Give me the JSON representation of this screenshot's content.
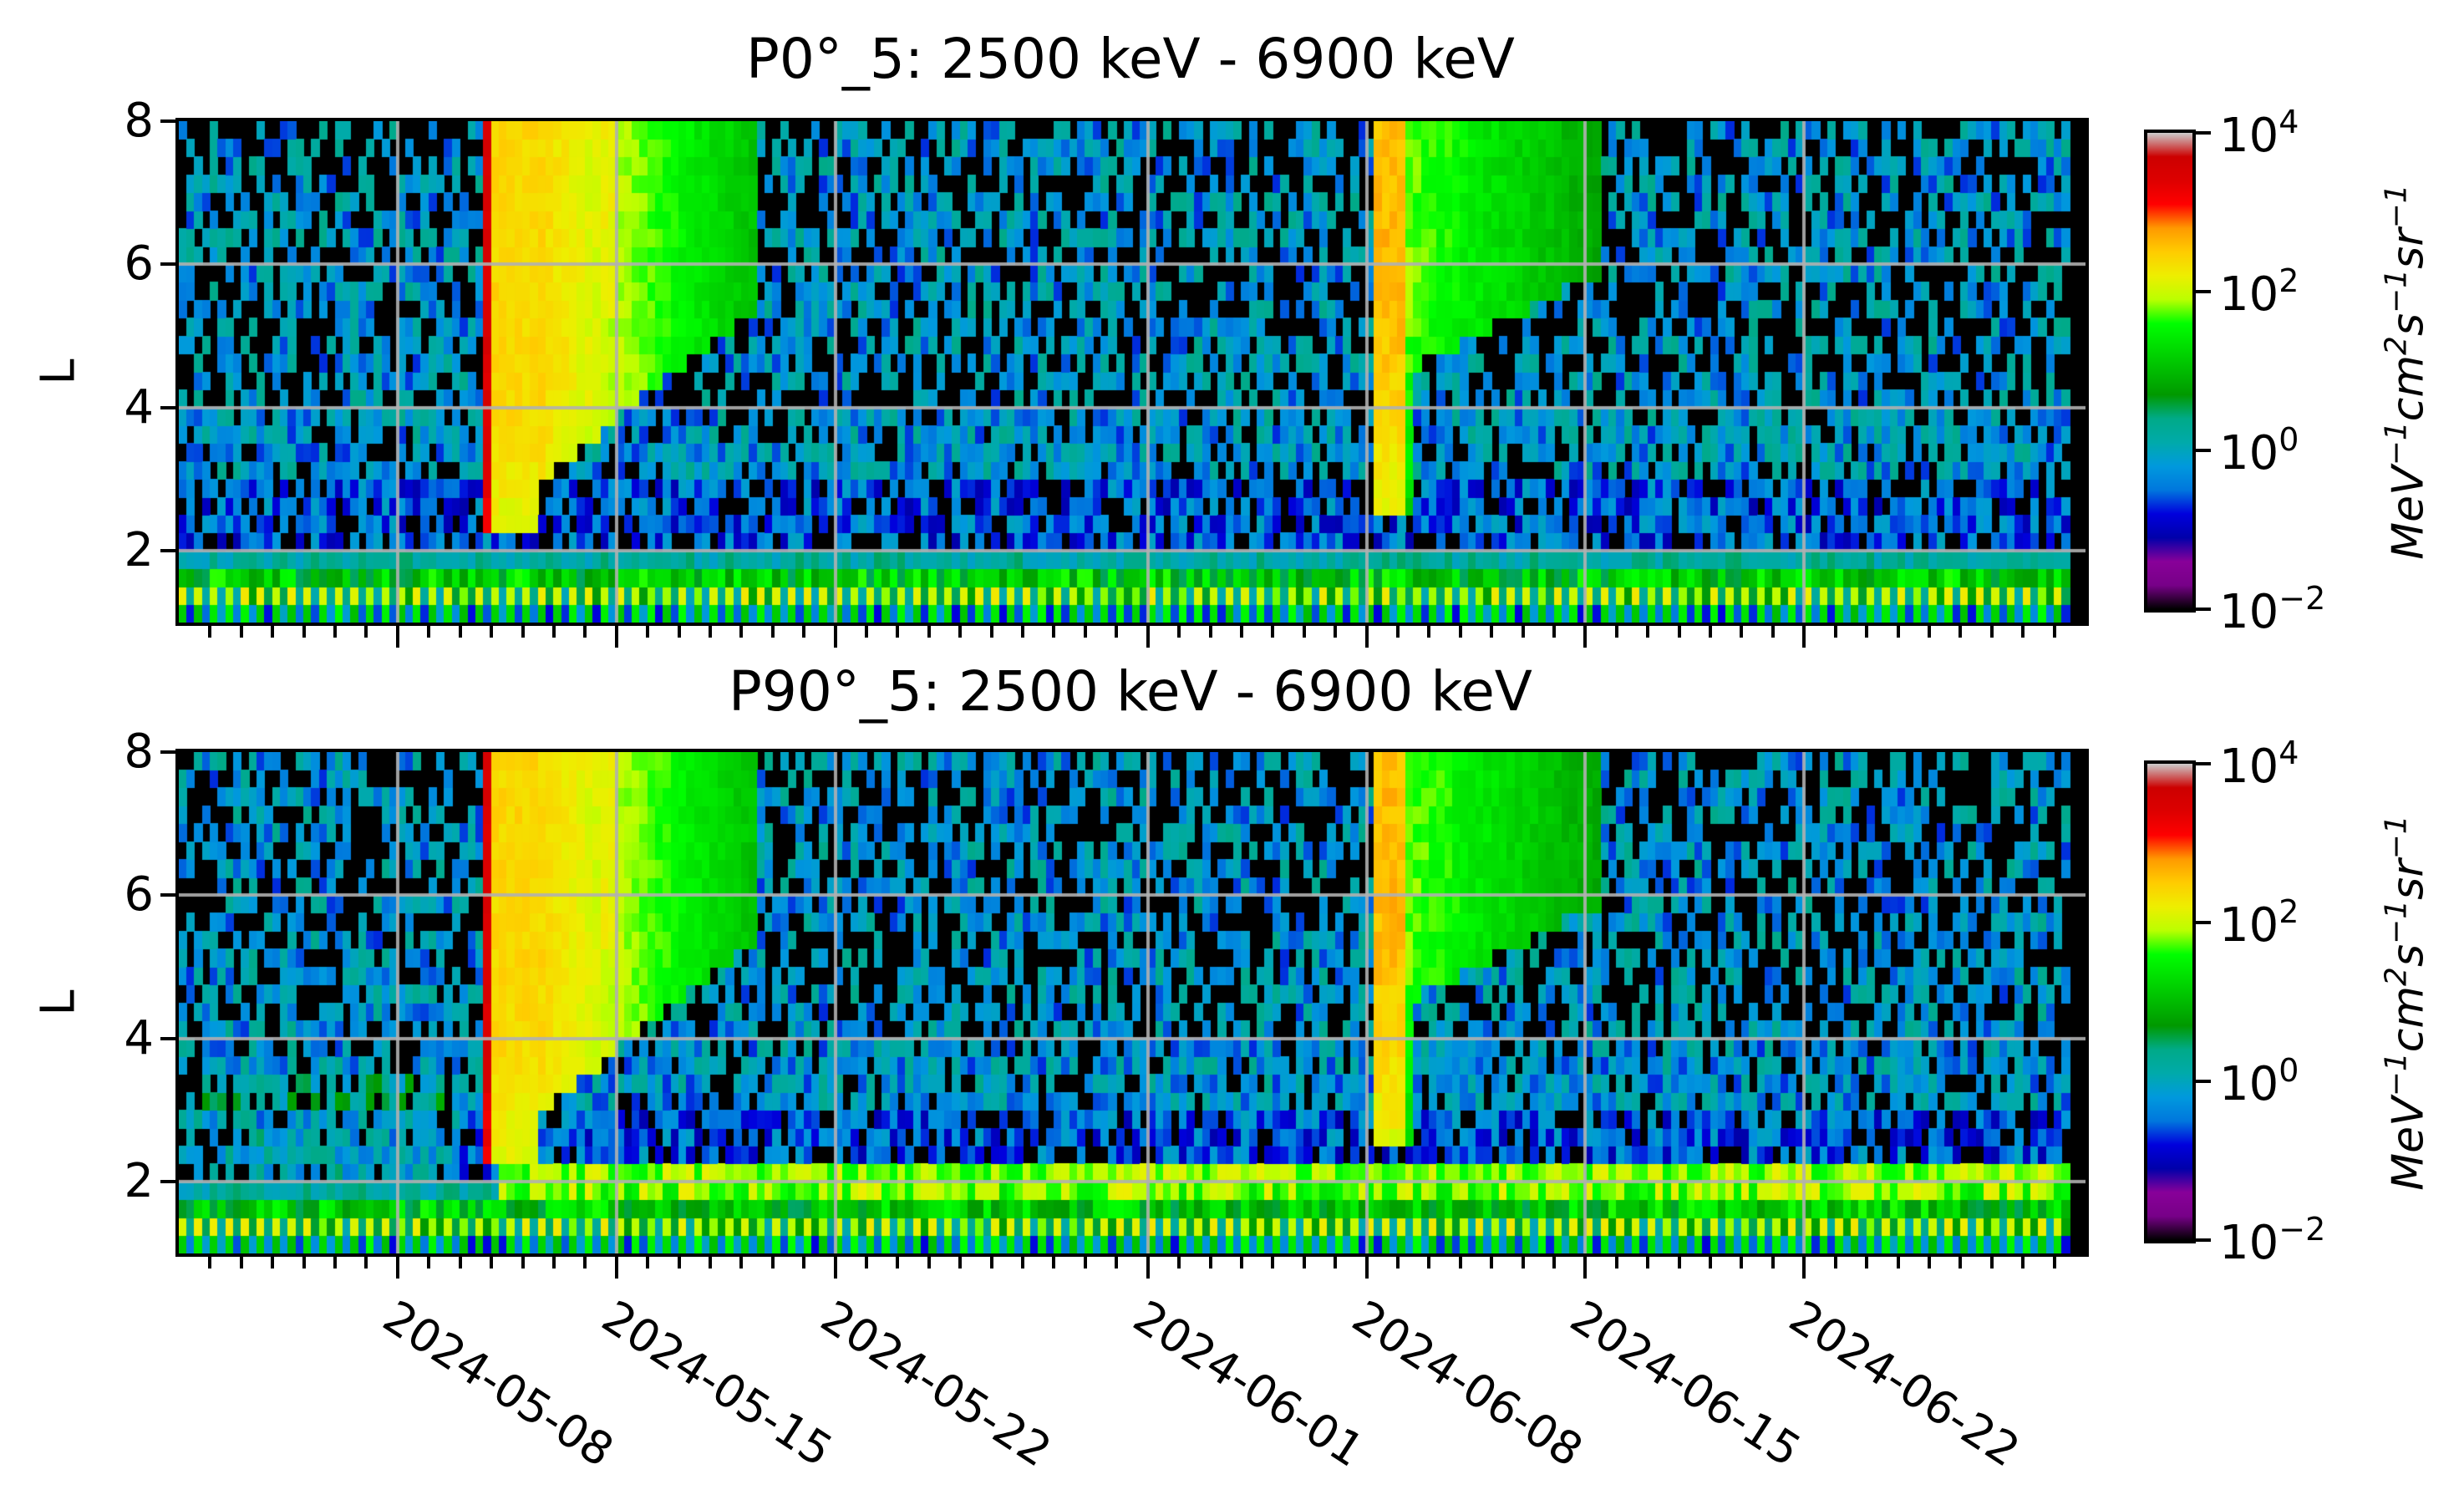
{
  "chart_data": [
    {
      "type": "heatmap",
      "title": "P0°_5: 2500 keV - 6900 keV",
      "xlabel": "",
      "ylabel": "L",
      "xlim": [
        "2024-05-01",
        "2024-07-01"
      ],
      "ylim": [
        1,
        8
      ],
      "yticks": [
        2,
        4,
        6,
        8
      ],
      "xticks": [
        "2024-05-08",
        "2024-05-15",
        "2024-05-22",
        "2024-06-01",
        "2024-06-08",
        "2024-06-15",
        "2024-06-22"
      ],
      "x_minor_tick_interval_days": 1,
      "grid": true,
      "time_bin_hours": 6,
      "L_bin": 0.25,
      "data_end": "2024-06-30T12:00",
      "colormap": "nipy_spectral",
      "colorbar": {
        "scale": "log",
        "range": [
          0.01,
          10000
        ],
        "ticks": [
          "10^-2",
          "10^0",
          "10^2",
          "10^4"
        ],
        "label": "MeV^-1 cm^2 s^-1 sr^-1"
      },
      "features": [
        {
          "name": "storm-1 injection",
          "start_day": 9.75,
          "peak_flux": 3000,
          "peak_L_range": [
            2.5,
            8
          ],
          "decay_to_day": 18.5
        },
        {
          "name": "storm-1 secondary band",
          "start_day": 13.4,
          "peak_flux": 150,
          "L_range": [
            5.5,
            8
          ]
        },
        {
          "name": "storm-2 injection",
          "start_day": 38.2,
          "peak_flux": 400,
          "L_range": [
            4.5,
            8
          ],
          "decay_to_day": 45.5
        }
      ],
      "background_flux": {
        "L_gt_2": "0.1 - 3 (sparse, many empty bins)",
        "L_lt_2": "1 - 100 (alternating pattern)"
      },
      "seed": 17
    },
    {
      "type": "heatmap",
      "title": "P90°_5: 2500 keV - 6900 keV",
      "xlabel": "",
      "ylabel": "L",
      "xlim": [
        "2024-05-01",
        "2024-07-01"
      ],
      "ylim": [
        1,
        8
      ],
      "yticks": [
        2,
        4,
        6,
        8
      ],
      "xticks": [
        "2024-05-08",
        "2024-05-15",
        "2024-05-22",
        "2024-06-01",
        "2024-06-08",
        "2024-06-15",
        "2024-06-22"
      ],
      "x_minor_tick_interval_days": 1,
      "grid": true,
      "time_bin_hours": 6,
      "L_bin": 0.25,
      "data_end": "2024-06-30T12:00",
      "colormap": "nipy_spectral",
      "colorbar": {
        "scale": "log",
        "range": [
          0.01,
          10000
        ],
        "ticks": [
          "10^-2",
          "10^0",
          "10^2",
          "10^4"
        ],
        "label": "MeV^-1 cm^2 s^-1 sr^-1"
      },
      "features": [
        {
          "name": "storm-1 injection",
          "start_day": 9.75,
          "peak_flux": 3000,
          "peak_L_range": [
            2.5,
            8
          ],
          "decay_to_day": 18.5
        },
        {
          "name": "storm-1 secondary band",
          "start_day": 13.4,
          "peak_flux": 150,
          "L_range": [
            5.5,
            8
          ]
        },
        {
          "name": "storm-2 injection",
          "start_day": 38.2,
          "peak_flux": 400,
          "L_range": [
            4.5,
            8
          ],
          "decay_to_day": 45.5
        },
        {
          "name": "new low-L belt (L≈1.75-2.25)",
          "start_day": 10,
          "flux": "30 - 150"
        }
      ],
      "background_flux": {
        "L_gt_2": "0.1 - 3 (sparse, many empty bins)",
        "L_lt_2": "1 - 100 (alternating pattern)"
      },
      "seed": 91
    }
  ],
  "panels": [
    {
      "title": "P0°_5: 2500 keV - 6900 keV",
      "ylabel": "L"
    },
    {
      "title": "P90°_5: 2500 keV - 6900 keV",
      "ylabel": "L"
    }
  ],
  "yticks": [
    "2",
    "4",
    "6",
    "8"
  ],
  "xticks": [
    "2024-05-08",
    "2024-05-15",
    "2024-05-22",
    "2024-06-01",
    "2024-06-08",
    "2024-06-15",
    "2024-06-22"
  ],
  "colorbar": {
    "ticks": [
      {
        "base": "10",
        "exp": "4"
      },
      {
        "base": "10",
        "exp": "2"
      },
      {
        "base": "10",
        "exp": "0"
      },
      {
        "base": "10",
        "exp": "−2"
      }
    ],
    "label_parts": [
      "MeV",
      "−1",
      "cm",
      "2",
      "s",
      "−1",
      "sr",
      "−1"
    ]
  }
}
